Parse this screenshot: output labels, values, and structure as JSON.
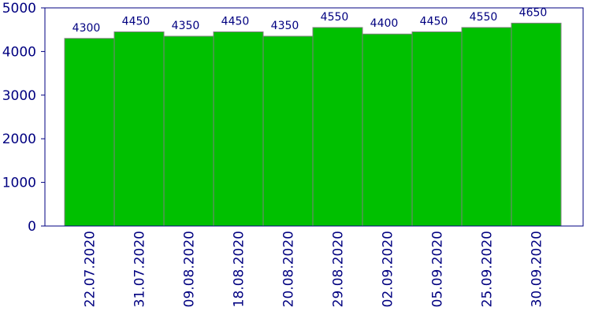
{
  "chart_data": {
    "type": "bar",
    "categories": [
      "22.07.2020",
      "31.07.2020",
      "09.08.2020",
      "18.08.2020",
      "20.08.2020",
      "29.08.2020",
      "02.09.2020",
      "05.09.2020",
      "25.09.2020",
      "30.09.2020"
    ],
    "values": [
      4300,
      4450,
      4350,
      4450,
      4350,
      4550,
      4400,
      4450,
      4550,
      4650
    ],
    "color": "#00c000",
    "ylim": [
      0,
      5000
    ],
    "yticks": [
      0,
      1000,
      2000,
      3000,
      4000,
      5000
    ],
    "grid": false
  }
}
